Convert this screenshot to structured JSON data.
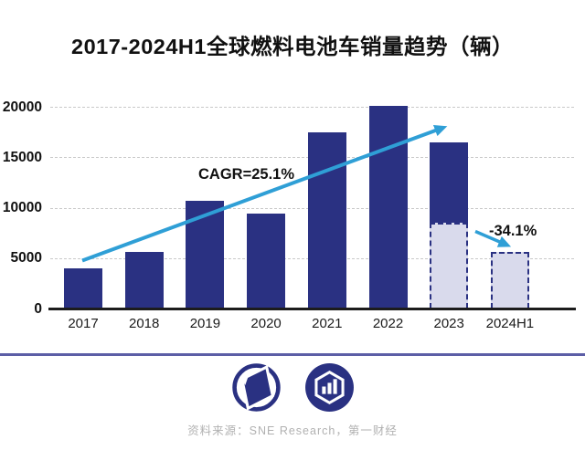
{
  "page": {
    "title": "2017-2024H1全球燃料电池车销量趋势（辆）",
    "source": "资料来源：SNE Research，第一财经"
  },
  "colors": {
    "background": "#ffffff",
    "title_text": "#111111",
    "tick_text": "#111111",
    "annotation_text": "#111111",
    "bar_solid": "#2a3182",
    "bar_dashed_fill": "#d9daec",
    "bar_dashed_border": "#2a3182",
    "trend_arrow": "#2f9fd6",
    "gridline": "#c9c9c9",
    "axis": "#1c1c1c",
    "divider": "#5c5ea6",
    "logo": "#2a3182",
    "source_text": "#b1b1b1"
  },
  "chart_data": {
    "type": "bar",
    "title": "2017-2024H1全球燃料电池车销量趋势（辆）",
    "categories": [
      "2017",
      "2018",
      "2019",
      "2020",
      "2021",
      "2022",
      "2023",
      "2024H1"
    ],
    "values": [
      4000,
      5600,
      10650,
      9400,
      17450,
      20100,
      16500,
      5600
    ],
    "bars": [
      {
        "label": "2017",
        "value": 4000,
        "style": "solid"
      },
      {
        "label": "2018",
        "value": 5600,
        "style": "solid"
      },
      {
        "label": "2019",
        "value": 10650,
        "style": "solid"
      },
      {
        "label": "2020",
        "value": 9400,
        "style": "solid"
      },
      {
        "label": "2021",
        "value": 17450,
        "style": "solid"
      },
      {
        "label": "2022",
        "value": 20100,
        "style": "solid"
      },
      {
        "label": "2023",
        "value": 16500,
        "style": "split",
        "split_value": 8500
      },
      {
        "label": "2024H1",
        "value": 5600,
        "style": "dashed"
      }
    ],
    "yticks": [
      0,
      5000,
      10000,
      15000,
      20000
    ],
    "ylim": [
      0,
      21500
    ],
    "xlabel": "",
    "ylabel": "",
    "grid": "horizontal-dashed",
    "legend": "none",
    "annotations": {
      "cagr": "CAGR=25.1%",
      "decline": "-34.1%"
    },
    "source": "资料来源：SNE Research，第一财经"
  }
}
